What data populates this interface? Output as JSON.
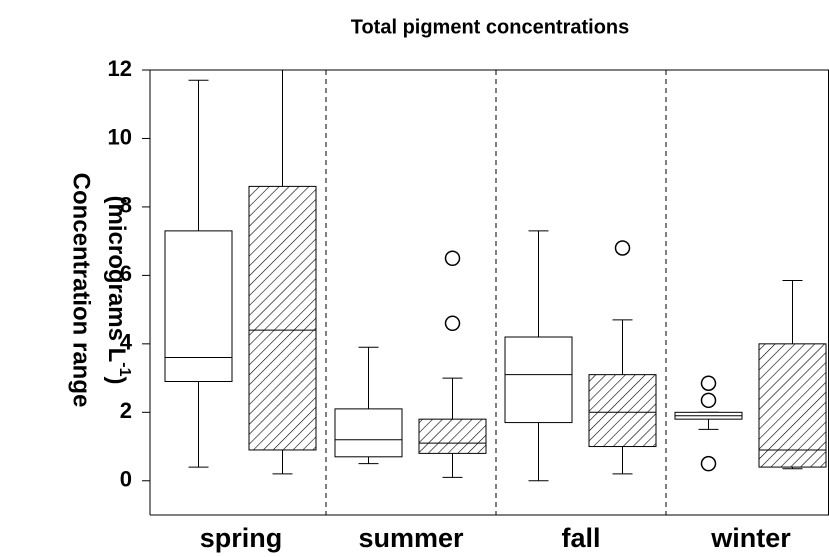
{
  "chart_data": {
    "type": "box",
    "title": "Total pigment concentrations",
    "y_label": {
      "line1": "Concentration range",
      "line2": "(micrograms L",
      "superscript": "-1",
      "line2_end": ")"
    },
    "categories": [
      "spring",
      "summer",
      "fall",
      "winter"
    ],
    "ylim": [
      -1,
      12
    ],
    "yticks": [
      0,
      2,
      4,
      6,
      8,
      10,
      12
    ],
    "series": [
      {
        "color": "#ffffff",
        "hatch": false,
        "boxes": [
          {
            "whislo": 0.4,
            "q1": 2.9,
            "med": 3.6,
            "q3": 7.3,
            "whishi": 11.7,
            "fliers": []
          },
          {
            "whislo": 0.5,
            "q1": 0.7,
            "med": 1.2,
            "q3": 2.1,
            "whishi": 3.9,
            "fliers": []
          },
          {
            "whislo": 0,
            "q1": 1.7,
            "med": 3.1,
            "q3": 4.2,
            "whishi": 7.3,
            "fliers": []
          },
          {
            "whislo": 1.5,
            "q1": 1.8,
            "med": 1.9,
            "q3": 2.0,
            "whishi": 2.0,
            "fliers": [
              2.85,
              2.35,
              0.5
            ]
          }
        ]
      },
      {
        "color": "#ffffff",
        "hatch": true,
        "boxes": [
          {
            "whislo": 0.2,
            "q1": 0.9,
            "med": 4.4,
            "q3": 8.6,
            "whishi": 12,
            "fliers": []
          },
          {
            "whislo": 0.1,
            "q1": 0.8,
            "med": 1.1,
            "q3": 1.8,
            "whishi": 3.0,
            "fliers": [
              4.6,
              6.5
            ]
          },
          {
            "whislo": 0.2,
            "q1": 1.0,
            "med": 2.0,
            "q3": 3.1,
            "whishi": 4.7,
            "fliers": [
              6.8
            ]
          },
          {
            "whislo": 0.35,
            "q1": 0.4,
            "med": 0.9,
            "q3": 4.0,
            "whishi": 5.85,
            "fliers": []
          }
        ]
      }
    ]
  }
}
